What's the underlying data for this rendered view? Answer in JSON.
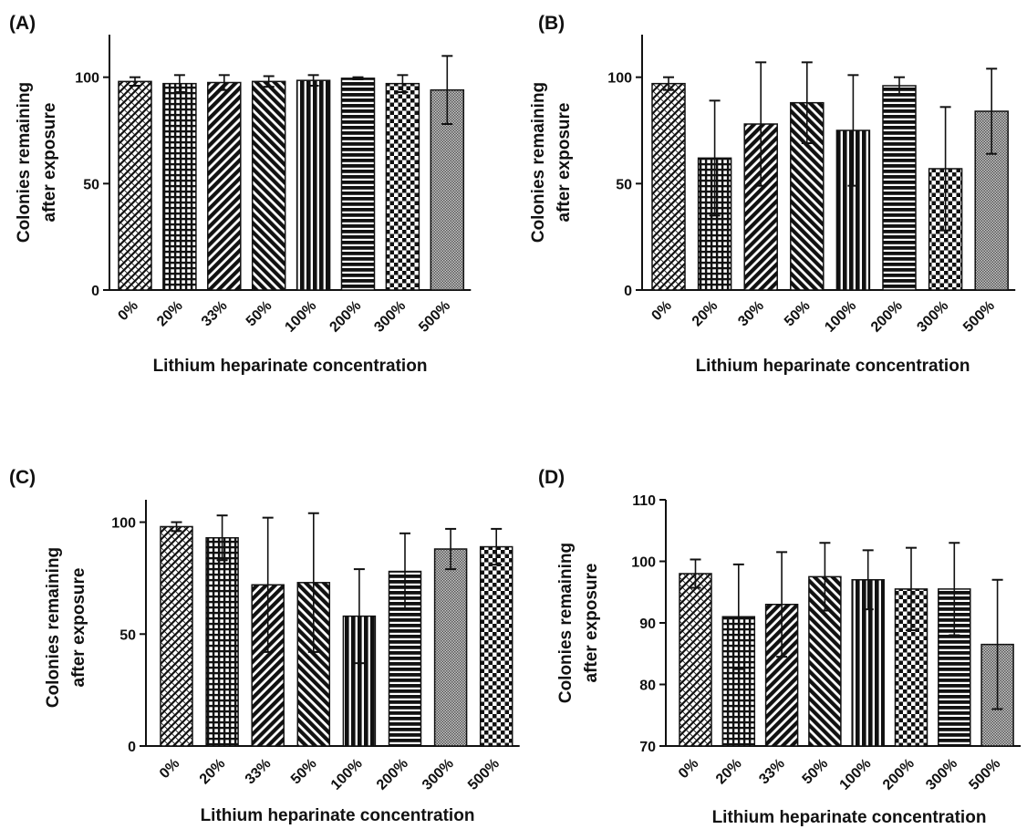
{
  "chart_data": [
    {
      "type": "bar",
      "panel": "(A)",
      "categories": [
        "0%",
        "20%",
        "33%",
        "50%",
        "100%",
        "200%",
        "300%",
        "500%"
      ],
      "values": [
        98,
        97,
        97.5,
        98,
        98.5,
        99.5,
        97,
        94
      ],
      "error": [
        2,
        4,
        3.5,
        2.5,
        2.5,
        0.5,
        4,
        16
      ],
      "xlabel": "Lithium heparinate concentration",
      "ylabel": [
        "Colonies remaining",
        "after exposure"
      ],
      "ylim": [
        0,
        120
      ],
      "yticks": [
        0,
        50,
        100
      ],
      "patterns": [
        "weave",
        "grid",
        "diag-left",
        "diag-right",
        "vert-thick",
        "horiz",
        "check",
        "fine"
      ]
    },
    {
      "type": "bar",
      "panel": "(B)",
      "categories": [
        "0%",
        "20%",
        "30%",
        "50%",
        "100%",
        "200%",
        "300%",
        "500%"
      ],
      "values": [
        97,
        62,
        78,
        88,
        75,
        96,
        57,
        84
      ],
      "error": [
        3,
        27,
        29,
        19,
        26,
        4,
        29,
        20
      ],
      "xlabel": "Lithium heparinate concentration",
      "ylabel": [
        "Colonies remaining",
        "after exposure"
      ],
      "ylim": [
        0,
        120
      ],
      "yticks": [
        0,
        50,
        100
      ],
      "patterns": [
        "weave",
        "grid",
        "diag-left",
        "diag-right",
        "vert-thick",
        "horiz",
        "check",
        "fine"
      ]
    },
    {
      "type": "bar",
      "panel": "(C)",
      "categories": [
        "0%",
        "20%",
        "33%",
        "50%",
        "100%",
        "200%",
        "300%",
        "500%"
      ],
      "values": [
        98,
        93,
        72,
        73,
        58,
        78,
        88,
        89
      ],
      "error": [
        2,
        10,
        30,
        31,
        21,
        17,
        9,
        8
      ],
      "xlabel": "Lithium heparinate concentration",
      "ylabel": [
        "Colonies remaining",
        "after exposure"
      ],
      "ylim": [
        0,
        110
      ],
      "yticks": [
        0,
        50,
        100
      ],
      "patterns": [
        "weave",
        "grid",
        "diag-left",
        "diag-right",
        "vert-thick",
        "horiz",
        "fine",
        "check"
      ]
    },
    {
      "type": "bar",
      "panel": "(D)",
      "categories": [
        "0%",
        "20%",
        "33%",
        "50%",
        "100%",
        "200%",
        "300%",
        "500%"
      ],
      "values": [
        98,
        91,
        93,
        97.5,
        97,
        95.5,
        95.5,
        86.5
      ],
      "error": [
        2.3,
        8.5,
        8.5,
        5.5,
        4.8,
        6.7,
        7.5,
        10.5
      ],
      "xlabel": "Lithium heparinate concentration",
      "ylabel": [
        "Colonies remaining",
        "after exposure"
      ],
      "ylim": [
        70,
        110
      ],
      "yticks": [
        70,
        80,
        90,
        100,
        110
      ],
      "patterns": [
        "weave",
        "grid",
        "diag-left",
        "diag-right",
        "vert-thick",
        "check",
        "horiz",
        "fine"
      ]
    }
  ]
}
